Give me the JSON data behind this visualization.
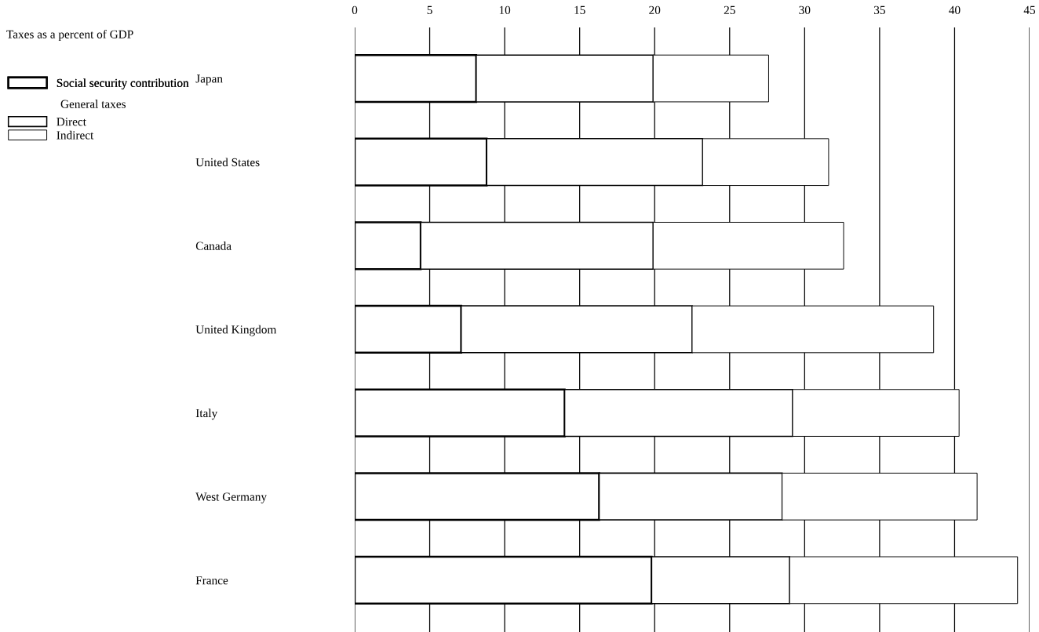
{
  "chart_data": {
    "type": "bar",
    "orientation": "horizontal",
    "stacked": true,
    "title": "Taxes as a percent of GDP",
    "categories": [
      "Japan",
      "United States",
      "Canada",
      "United Kingdom",
      "Italy",
      "West Germany",
      "France"
    ],
    "series": [
      {
        "name": "Social security contribution",
        "color": "#ffffff",
        "values": [
          8.1,
          8.8,
          4.4,
          7.1,
          14.0,
          16.3,
          19.8
        ]
      },
      {
        "name": "Direct",
        "color": "#ffffff",
        "values": [
          11.8,
          14.4,
          15.5,
          15.4,
          15.2,
          12.2,
          9.2
        ]
      },
      {
        "name": "Indirect",
        "color": "#ffffff",
        "values": [
          7.7,
          8.4,
          12.7,
          16.1,
          11.1,
          13.0,
          15.2
        ]
      }
    ],
    "annotations": [
      "General taxes"
    ],
    "xlim": [
      0,
      45
    ],
    "xticks": [
      0,
      5,
      10,
      15,
      20,
      25,
      30,
      35,
      40,
      45
    ],
    "grid": "x",
    "legend": "left"
  }
}
